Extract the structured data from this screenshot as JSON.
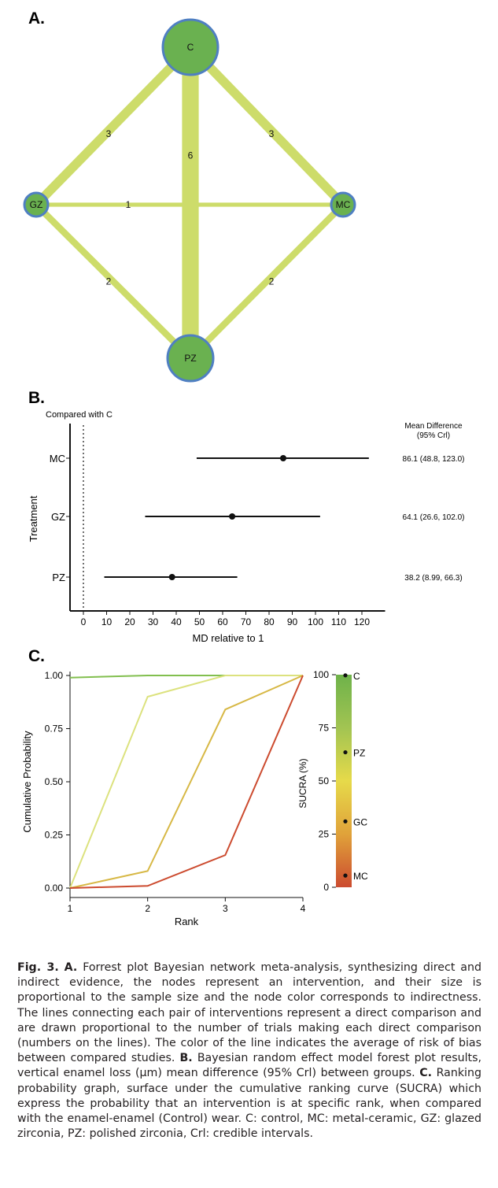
{
  "panel_a": {
    "label": "A.",
    "nodes": [
      {
        "id": "C",
        "label": "C"
      },
      {
        "id": "GZ",
        "label": "GZ"
      },
      {
        "id": "MC",
        "label": "MC"
      },
      {
        "id": "PZ",
        "label": "PZ"
      }
    ],
    "edges": [
      {
        "from": "C",
        "to": "GZ",
        "label": "3"
      },
      {
        "from": "C",
        "to": "MC",
        "label": "3"
      },
      {
        "from": "C",
        "to": "PZ",
        "label": "6"
      },
      {
        "from": "GZ",
        "to": "MC",
        "label": "1"
      },
      {
        "from": "GZ",
        "to": "PZ",
        "label": "2"
      },
      {
        "from": "MC",
        "to": "PZ",
        "label": "2"
      }
    ],
    "colors": {
      "node_fill": "#6ab150",
      "node_stroke": "#4f7fc2",
      "edge": "#cddc6a"
    }
  },
  "panel_b": {
    "label": "B.",
    "compared_with": "Compared with C",
    "effect_header": [
      "Mean Difference",
      "(95% Crl)"
    ],
    "ylabel": "Treatment",
    "xlabel": "MD relative to 1"
  },
  "panel_c": {
    "label": "C.",
    "xlabel": "Rank",
    "ylabel": "Cumulative Probability",
    "sucra_label": "SUCRA (%)"
  },
  "chart_data": [
    {
      "type": "network",
      "nodes": [
        "C",
        "GZ",
        "MC",
        "PZ"
      ],
      "edges": [
        {
          "pair": [
            "C",
            "GZ"
          ],
          "trials": 3
        },
        {
          "pair": [
            "C",
            "MC"
          ],
          "trials": 3
        },
        {
          "pair": [
            "C",
            "PZ"
          ],
          "trials": 6
        },
        {
          "pair": [
            "GZ",
            "MC"
          ],
          "trials": 1
        },
        {
          "pair": [
            "GZ",
            "PZ"
          ],
          "trials": 2
        },
        {
          "pair": [
            "MC",
            "PZ"
          ],
          "trials": 2
        }
      ]
    },
    {
      "type": "forest",
      "categories": [
        "MC",
        "GZ",
        "PZ"
      ],
      "estimates": [
        86.1,
        64.1,
        38.2
      ],
      "lower": [
        48.8,
        26.6,
        8.99
      ],
      "upper": [
        123.0,
        102.0,
        66.3
      ],
      "labels": [
        "86.1 (48.8, 123.0)",
        "64.1 (26.6, 102.0)",
        "38.2 (8.99, 66.3)"
      ],
      "xticks": [
        "0",
        "10",
        "20",
        "30",
        "40",
        "50",
        "60",
        "70",
        "80",
        "90",
        "100",
        "110",
        "120"
      ],
      "xlim": [
        -12,
        130
      ],
      "reference": 0
    },
    {
      "type": "line",
      "x": [
        1,
        2,
        3,
        4
      ],
      "xticks": [
        "1",
        "2",
        "3",
        "4"
      ],
      "yticks": [
        "0.00",
        "0.25",
        "0.50",
        "0.75",
        "1.00"
      ],
      "ylim": [
        0,
        1
      ],
      "series": [
        {
          "values": [
            0.99,
            1.0,
            1.0,
            1.0
          ],
          "color": "#82bf4f"
        },
        {
          "values": [
            0.0,
            0.9,
            1.0,
            1.0
          ],
          "color": "#dce27e"
        },
        {
          "values": [
            0.0,
            0.08,
            0.84,
            1.0
          ],
          "color": "#d7b845"
        },
        {
          "values": [
            0.0,
            0.01,
            0.155,
            1.0
          ],
          "color": "#cc4b2f"
        }
      ],
      "sucra": {
        "ticks": [
          "0",
          "25",
          "50",
          "75",
          "100"
        ],
        "ylim": [
          0,
          100
        ],
        "points": [
          {
            "name": "C",
            "value": 99.7
          },
          {
            "name": "PZ",
            "value": 63.5
          },
          {
            "name": "GC",
            "value": 31.0
          },
          {
            "name": "MC",
            "value": 5.5
          }
        ],
        "gradient": [
          "#cc4b2f",
          "#e0a23a",
          "#e6da4a",
          "#a2c452",
          "#6eb24a"
        ]
      }
    }
  ],
  "caption": {
    "fig": "Fig. 3.",
    "a": "A.",
    "a_text": " Forrest plot Bayesian network meta-analysis, synthesizing direct and indirect evidence, the nodes represent an intervention, and their size is proportional to the sample size and the node color corresponds to indirectness. The lines connecting each pair of interventions represent a direct comparison and are drawn proportional to the number of trials making each direct comparison (numbers on the lines). The color of the line indicates the average of risk of bias between compared studies. ",
    "b": "B.",
    "b_text": " Bayesian random effect model forest plot results, vertical enamel loss (μm) mean difference (95% Crl) between groups. ",
    "c": "C.",
    "c_text": " Ranking probability graph, surface under the cumulative ranking curve (SUCRA) which express the probability that an intervention is at specific rank, when compared with the enamel-enamel (Control) wear. C: control, MC: metal-ceramic, GZ: glazed zirconia, PZ: polished zirconia, Crl: credible intervals."
  }
}
